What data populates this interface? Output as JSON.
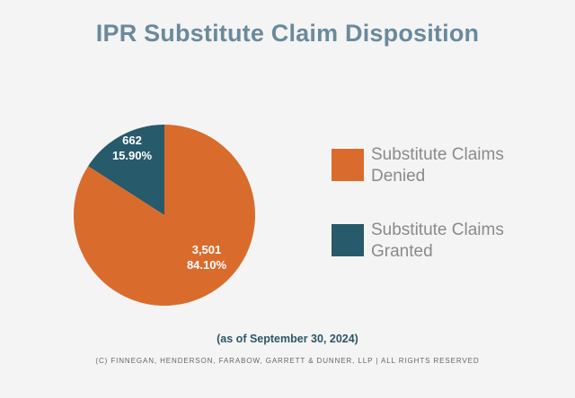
{
  "title": "IPR Substitute Claim Disposition",
  "chart_data": {
    "type": "pie",
    "slices": [
      {
        "label": "Substitute Claims Denied",
        "value": 3501,
        "value_label": "3,501",
        "percent_label": "84.10%",
        "color": "#d96c2c"
      },
      {
        "label": "Substitute Claims Granted",
        "value": 662,
        "value_label": "662",
        "percent_label": "15.90%",
        "color": "#275a6b"
      }
    ],
    "legend_placement": "right"
  },
  "legend": [
    {
      "label": "Substitute Claims\nDenied",
      "color": "#d96c2c"
    },
    {
      "label": "Substitute Claims\nGranted",
      "color": "#275a6b"
    }
  ],
  "date_note": "(as of September 30, 2024)",
  "copyright": "(C) FINNEGAN, HENDERSON, FARABOW, GARRETT & DUNNER, LLP | ALL RIGHTS RESERVED"
}
